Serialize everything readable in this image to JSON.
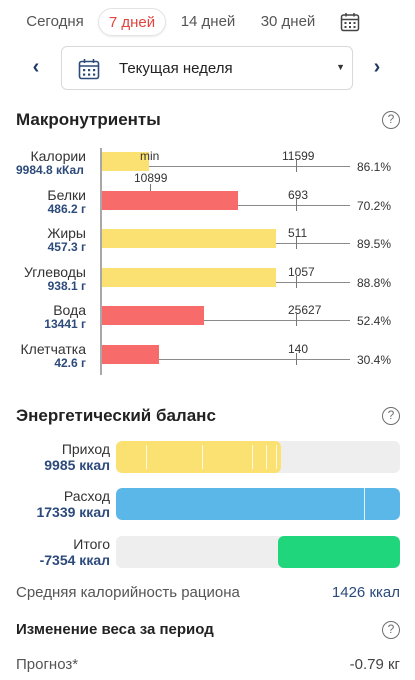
{
  "tabs": [
    {
      "label": "Сегодня",
      "active": false
    },
    {
      "label": "7 дней",
      "active": true
    },
    {
      "label": "14 дней",
      "active": false
    },
    {
      "label": "30 дней",
      "active": false
    }
  ],
  "period_select": {
    "label": "Текущая неделя"
  },
  "macros": {
    "title": "Макронутриенты",
    "help": "?",
    "rows": [
      {
        "name": "Калории",
        "value": "9984.8 кКал",
        "target": "11599",
        "target_extra": "10899",
        "min_label": "min",
        "percent": "86.1%",
        "fill": 0.19,
        "color": "#fbe072",
        "fill_color": "#fbe072"
      },
      {
        "name": "Белки",
        "value": "486.2 г",
        "target": "693",
        "percent": "70.2%",
        "fill": 0.55,
        "color": "#f76b6b"
      },
      {
        "name": "Жиры",
        "value": "457.3 г",
        "target": "511",
        "percent": "89.5%",
        "fill": 0.7,
        "color": "#fbe072"
      },
      {
        "name": "Углеводы",
        "value": "938.1 г",
        "target": "1057",
        "percent": "88.8%",
        "fill": 0.7,
        "color": "#fbe072"
      },
      {
        "name": "Вода",
        "value": "13441 г",
        "target": "25627",
        "percent": "52.4%",
        "fill": 0.41,
        "color": "#f76b6b"
      },
      {
        "name": "Клетчатка",
        "value": "42.6 г",
        "target": "140",
        "percent": "30.4%",
        "fill": 0.23,
        "color": "#f76b6b"
      }
    ]
  },
  "energy": {
    "title": "Энергетический баланс",
    "help": "?",
    "rows": [
      {
        "label": "Приход",
        "value": "9985 ккал",
        "fill": 0.58,
        "color": "#fbe072"
      },
      {
        "label": "Расход",
        "value": "17339 ккал",
        "fill": 1.0,
        "color": "#5ab7e8"
      },
      {
        "label": "Итого",
        "value": "-7354 ккал",
        "fill": 0.43,
        "color": "#1fd67d"
      }
    ]
  },
  "avg_calorie": {
    "label": "Средняя калорийность рациона",
    "value": "1426 ккал"
  },
  "weight_change": {
    "title": "Изменение веса за период",
    "help": "?"
  },
  "forecast": {
    "label": "Прогноз*",
    "value": "-0.79 кг"
  }
}
